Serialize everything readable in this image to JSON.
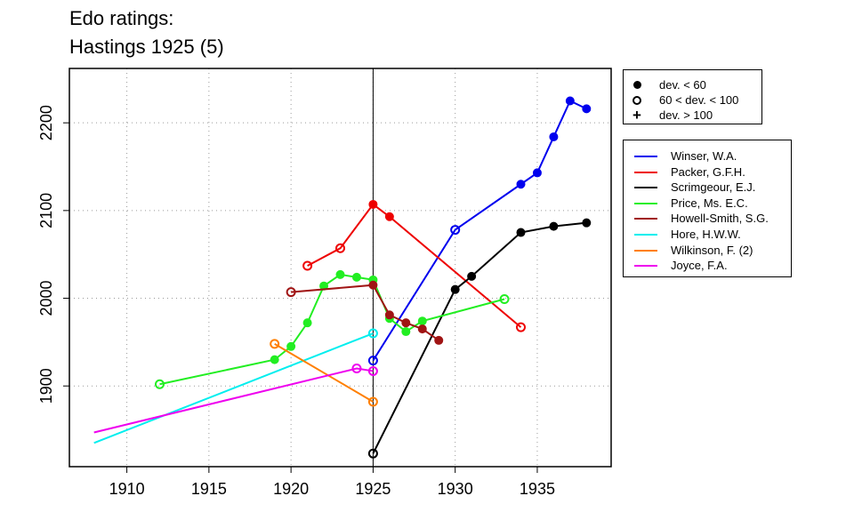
{
  "title_lines": [
    "Edo ratings:",
    "Hastings 1925 (5)"
  ],
  "colors": {
    "Winser, W.A.": "#0000ee",
    "Packer, G.F.H.": "#ee0000",
    "Scrimgeour, E.J.": "#000000",
    "Price, Ms. E.C.": "#22ee22",
    "Howell-Smith, S.G.": "#a01414",
    "Hore, H.W.W.": "#00eeee",
    "Wilkinson, F. (2)": "#ff7f00",
    "Joyce, F.A.": "#ee00ee"
  },
  "symbol_legend": [
    {
      "symbol": "filled-circle",
      "label": "dev. < 60"
    },
    {
      "symbol": "open-circle",
      "label": "60 < dev. < 100"
    },
    {
      "symbol": "plus",
      "label": "dev. > 100"
    }
  ],
  "chart_data": {
    "type": "line",
    "title": "Edo ratings: Hastings 1925 (5)",
    "xlabel": "",
    "ylabel": "",
    "xlim": [
      1906.5,
      1939.5
    ],
    "ylim": [
      1808,
      2262
    ],
    "xticks": [
      1910,
      1915,
      1920,
      1925,
      1930,
      1935
    ],
    "yticks": [
      1900,
      2000,
      2100,
      2200
    ],
    "grid": true,
    "reference_line_x": 1925,
    "legend_position": "right",
    "series": [
      {
        "name": "Winser, W.A.",
        "points": [
          {
            "x": 1925,
            "y": 1929,
            "marker": "open"
          },
          {
            "x": 1930,
            "y": 2078,
            "marker": "open"
          },
          {
            "x": 1934,
            "y": 2130,
            "marker": "filled"
          },
          {
            "x": 1935,
            "y": 2143,
            "marker": "filled"
          },
          {
            "x": 1936,
            "y": 2184,
            "marker": "filled"
          },
          {
            "x": 1937,
            "y": 2225,
            "marker": "filled"
          },
          {
            "x": 1938,
            "y": 2216,
            "marker": "filled"
          }
        ]
      },
      {
        "name": "Packer, G.F.H.",
        "points": [
          {
            "x": 1921,
            "y": 2037,
            "marker": "open"
          },
          {
            "x": 1923,
            "y": 2057,
            "marker": "open"
          },
          {
            "x": 1925,
            "y": 2107,
            "marker": "filled"
          },
          {
            "x": 1926,
            "y": 2093,
            "marker": "filled"
          },
          {
            "x": 1934,
            "y": 1967,
            "marker": "open"
          }
        ]
      },
      {
        "name": "Scrimgeour, E.J.",
        "points": [
          {
            "x": 1925,
            "y": 1823,
            "marker": "open"
          },
          {
            "x": 1930,
            "y": 2010,
            "marker": "filled"
          },
          {
            "x": 1931,
            "y": 2025,
            "marker": "filled"
          },
          {
            "x": 1934,
            "y": 2075,
            "marker": "filled"
          },
          {
            "x": 1936,
            "y": 2082,
            "marker": "filled"
          },
          {
            "x": 1938,
            "y": 2086,
            "marker": "filled"
          }
        ]
      },
      {
        "name": "Price, Ms. E.C.",
        "points": [
          {
            "x": 1912,
            "y": 1902,
            "marker": "open"
          },
          {
            "x": 1919,
            "y": 1930,
            "marker": "filled"
          },
          {
            "x": 1920,
            "y": 1945,
            "marker": "filled"
          },
          {
            "x": 1921,
            "y": 1972,
            "marker": "filled"
          },
          {
            "x": 1922,
            "y": 2014,
            "marker": "filled"
          },
          {
            "x": 1923,
            "y": 2027,
            "marker": "filled"
          },
          {
            "x": 1924,
            "y": 2024,
            "marker": "filled"
          },
          {
            "x": 1925,
            "y": 2021,
            "marker": "filled"
          },
          {
            "x": 1926,
            "y": 1977,
            "marker": "filled"
          },
          {
            "x": 1927,
            "y": 1962,
            "marker": "filled"
          },
          {
            "x": 1928,
            "y": 1974,
            "marker": "filled"
          },
          {
            "x": 1933,
            "y": 1999,
            "marker": "open"
          }
        ]
      },
      {
        "name": "Howell-Smith, S.G.",
        "points": [
          {
            "x": 1920,
            "y": 2007,
            "marker": "open"
          },
          {
            "x": 1925,
            "y": 2015,
            "marker": "filled"
          },
          {
            "x": 1926,
            "y": 1981,
            "marker": "filled"
          },
          {
            "x": 1927,
            "y": 1972,
            "marker": "filled"
          },
          {
            "x": 1928,
            "y": 1965,
            "marker": "filled"
          },
          {
            "x": 1929,
            "y": 1952,
            "marker": "filled"
          }
        ]
      },
      {
        "name": "Hore, H.W.W.",
        "points": [
          {
            "x": 1908,
            "y": 1835,
            "marker": "none"
          },
          {
            "x": 1925,
            "y": 1960,
            "marker": "open"
          }
        ]
      },
      {
        "name": "Wilkinson, F. (2)",
        "points": [
          {
            "x": 1919,
            "y": 1948,
            "marker": "open"
          },
          {
            "x": 1925,
            "y": 1882,
            "marker": "open"
          }
        ]
      },
      {
        "name": "Joyce, F.A.",
        "points": [
          {
            "x": 1908,
            "y": 1847,
            "marker": "none"
          },
          {
            "x": 1924,
            "y": 1920,
            "marker": "open"
          },
          {
            "x": 1925,
            "y": 1917,
            "marker": "open"
          }
        ]
      }
    ]
  }
}
